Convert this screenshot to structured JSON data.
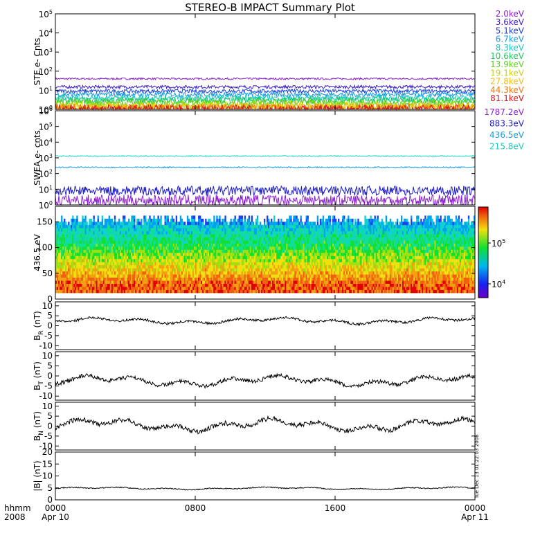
{
  "title": "STEREO-B IMPACT Summary Plot",
  "footer_stamp": "Tue Dec 13 01:22:03 2008",
  "x_axis": {
    "corner_line1": "hhmm",
    "corner_line2": "2008",
    "ticks": [
      {
        "hour": 0,
        "line1": "0000",
        "line2": "Apr 10"
      },
      {
        "hour": 8,
        "line1": "0800",
        "line2": ""
      },
      {
        "hour": 16,
        "line1": "1600",
        "line2": ""
      },
      {
        "hour": 24,
        "line1": "0000",
        "line2": "Apr 11"
      }
    ],
    "range_hours": [
      0,
      24
    ]
  },
  "chart_data": [
    {
      "type": "line",
      "ylabel": "STE e- Cnts",
      "log": true,
      "ylim_exp": [
        0,
        5
      ],
      "yticks": [
        {
          "base": "10",
          "exp": "0"
        },
        {
          "base": "10",
          "exp": "1"
        },
        {
          "base": "10",
          "exp": "2"
        },
        {
          "base": "10",
          "exp": "3"
        },
        {
          "base": "10",
          "exp": "4"
        },
        {
          "base": "10",
          "exp": "5"
        }
      ],
      "series": [
        {
          "name": "2.0keV",
          "color": "#8b1fd0",
          "level": 40,
          "noise": 0.05
        },
        {
          "name": "3.6keV",
          "color": "#3a1ec8",
          "level": 15,
          "noise": 0.08
        },
        {
          "name": "5.1keV",
          "color": "#1d40e0",
          "level": 9,
          "noise": 0.1
        },
        {
          "name": "6.7keV",
          "color": "#1a9ae0",
          "level": 6,
          "noise": 0.12
        },
        {
          "name": "8.3keV",
          "color": "#18c8c0",
          "level": 4,
          "noise": 0.14
        },
        {
          "name": "10.6keV",
          "color": "#20c860",
          "level": 3,
          "noise": 0.16
        },
        {
          "name": "13.9keV",
          "color": "#60d020",
          "level": 2.2,
          "noise": 0.18
        },
        {
          "name": "19.1keV",
          "color": "#c8d010",
          "level": 1.6,
          "noise": 0.2
        },
        {
          "name": "27.8keV",
          "color": "#f0c010",
          "level": 1.3,
          "noise": 0.22
        },
        {
          "name": "44.3keV",
          "color": "#f07810",
          "level": 1.1,
          "noise": 0.24
        },
        {
          "name": "81.1keV",
          "color": "#d81818",
          "level": 1.0,
          "noise": 0.25
        }
      ]
    },
    {
      "type": "line",
      "ylabel": "SWEA e- cnts",
      "log": true,
      "ylim_exp": [
        0,
        6
      ],
      "yticks": [
        {
          "base": "10",
          "exp": "0"
        },
        {
          "base": "10",
          "exp": "1"
        },
        {
          "base": "10",
          "exp": "2"
        },
        {
          "base": "10",
          "exp": "3"
        },
        {
          "base": "10",
          "exp": "4"
        },
        {
          "base": "10",
          "exp": "5"
        },
        {
          "base": "10",
          "exp": "6"
        }
      ],
      "series": [
        {
          "name": "1787.2eV",
          "color": "#8b1fd0",
          "level": 2,
          "noise": 0.35
        },
        {
          "name": "883.3eV",
          "color": "#2020c8",
          "level": 8,
          "noise": 0.3
        },
        {
          "name": "436.5eV",
          "color": "#1a9ae0",
          "level": 250,
          "noise": 0.04
        },
        {
          "name": "215.8eV",
          "color": "#18d0c0",
          "level": 1300,
          "noise": 0.03
        }
      ]
    },
    {
      "type": "heatmap",
      "ylabel": "436.5 eV",
      "ylim": [
        0,
        180
      ],
      "yticks": [
        "0",
        "50",
        "100",
        "150"
      ],
      "colorbar_ticks": [
        {
          "base": "10",
          "exp": "5"
        },
        {
          "base": "10",
          "exp": "4"
        }
      ]
    },
    {
      "type": "line",
      "ylabel": "B",
      "ylabel_sub": "R",
      "ylabel_unit": " (nT)",
      "ylim": [
        -12,
        12
      ],
      "yticks": [
        "10",
        "5",
        "0",
        "-5",
        "-10"
      ],
      "series": [
        {
          "name": "",
          "color": "#000000",
          "level": 2.5,
          "noise": 1.2
        }
      ]
    },
    {
      "type": "line",
      "ylabel": "B",
      "ylabel_sub": "T",
      "ylabel_unit": " (nT)",
      "ylim": [
        -12,
        12
      ],
      "yticks": [
        "10",
        "5",
        "0",
        "-5",
        "-10"
      ],
      "series": [
        {
          "name": "",
          "color": "#000000",
          "level": -2.5,
          "noise": 2.0
        }
      ]
    },
    {
      "type": "line",
      "ylabel": "B",
      "ylabel_sub": "N",
      "ylabel_unit": " (nT)",
      "ylim": [
        -12,
        12
      ],
      "yticks": [
        "10",
        "5",
        "0",
        "-5",
        "-10"
      ],
      "series": [
        {
          "name": "",
          "color": "#000000",
          "level": 0.5,
          "noise": 2.4
        }
      ]
    },
    {
      "type": "line",
      "ylabel": "|B| (nT)",
      "ylim": [
        0,
        20
      ],
      "yticks": [
        "20",
        "15",
        "10",
        "5",
        "0"
      ],
      "series": [
        {
          "name": "",
          "color": "#000000",
          "level": 4.8,
          "noise": 0.4
        }
      ]
    }
  ]
}
